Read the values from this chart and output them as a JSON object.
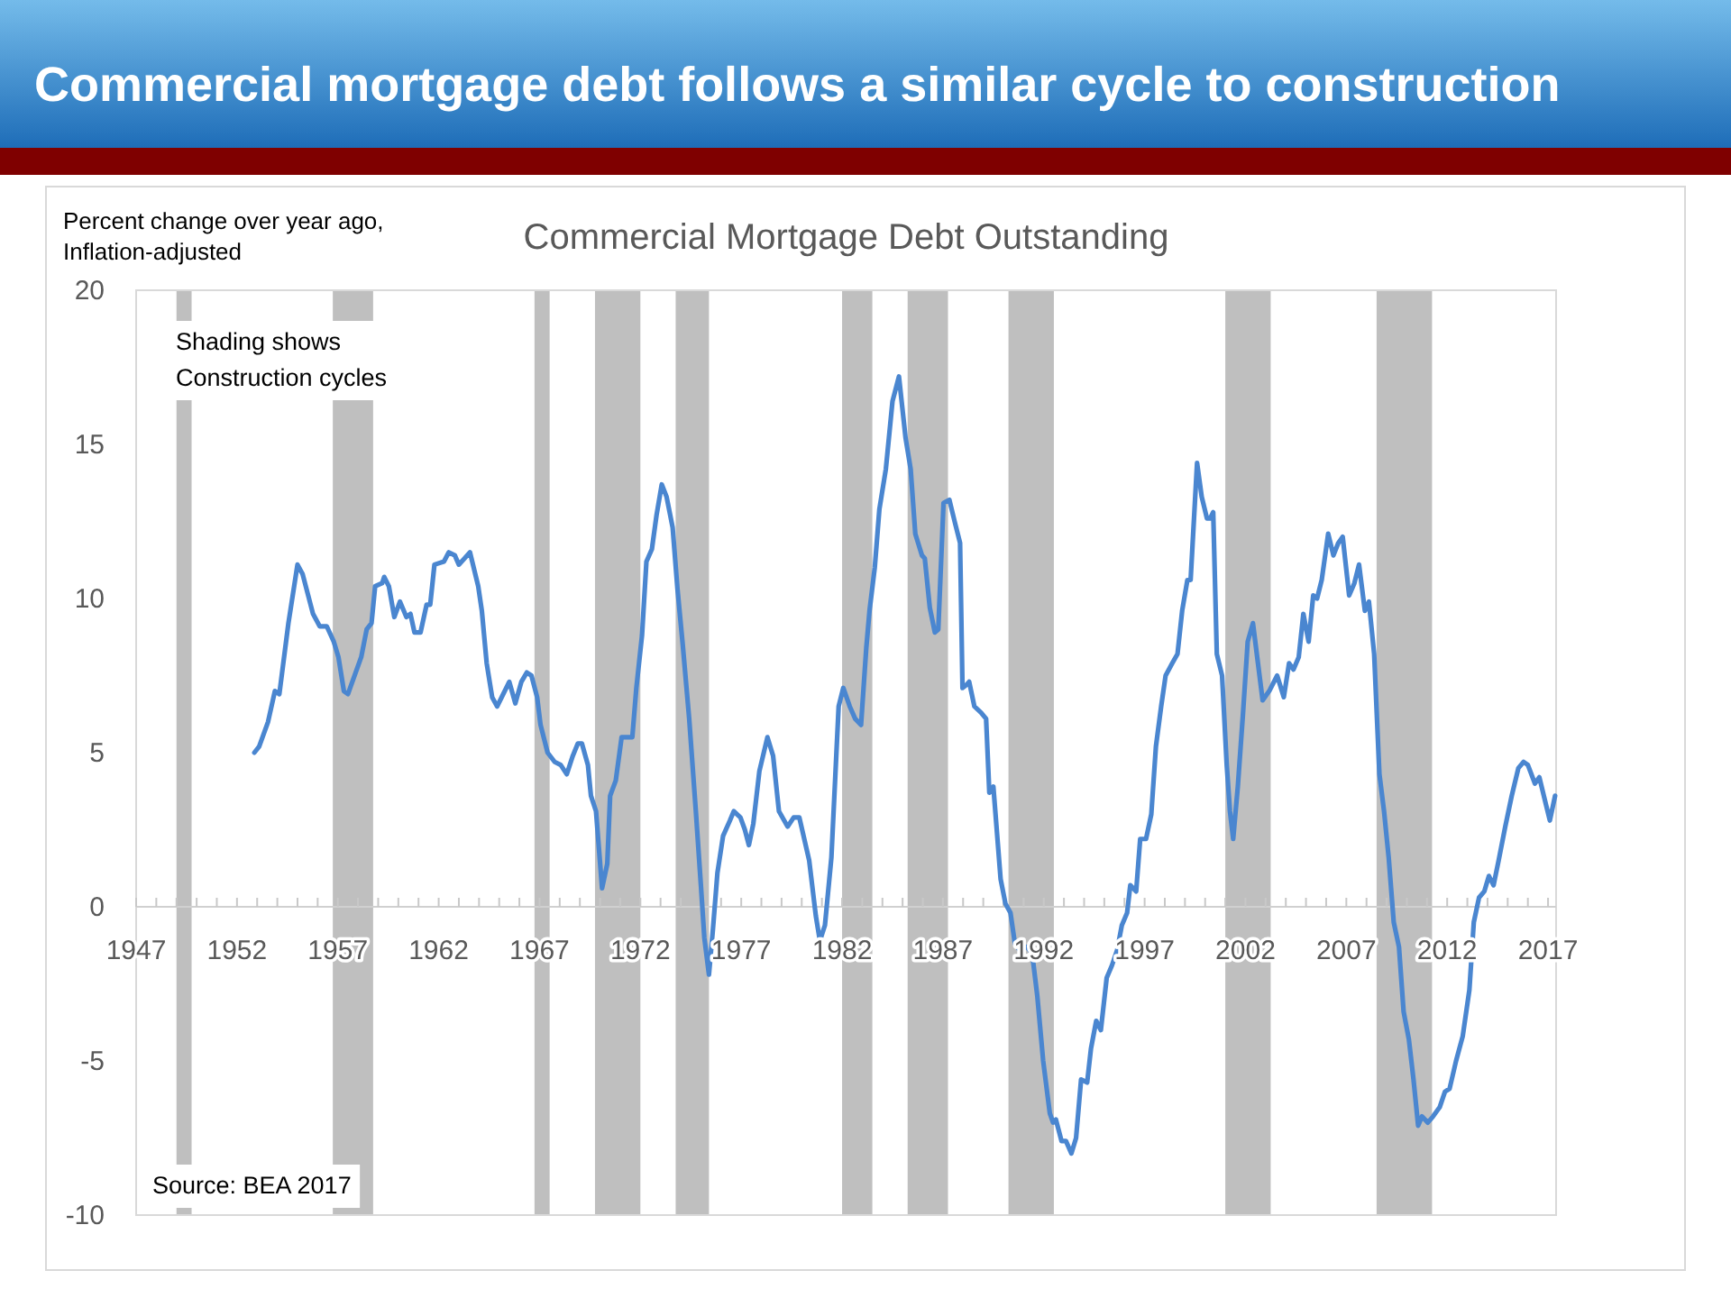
{
  "chart_data": {
    "type": "line",
    "title": "Commercial mortgage debt follows a similar cycle to construction",
    "subtitle": "Commercial Mortgage Debt Outstanding",
    "ylabel": "Percent change over year ago, Inflation-adjusted",
    "annotations": [
      "Shading shows Construction cycles",
      "Source: BEA 2017"
    ],
    "xlim": [
      1947,
      2017.4
    ],
    "ylim": [
      -10,
      20
    ],
    "yticks": [
      -10,
      -5,
      0,
      5,
      10,
      15,
      20
    ],
    "xticks": [
      1947,
      {
        "value": 1948,
        "label": null
      },
      {
        "value": 1949,
        "label": null
      },
      {
        "value": 1950,
        "label": null
      },
      {
        "value": 1951,
        "label": null
      },
      1952,
      {
        "value": 1953,
        "label": null
      },
      {
        "value": 1954,
        "label": null
      },
      {
        "value": 1955,
        "label": null
      },
      {
        "value": 1956,
        "label": null
      },
      1957,
      {
        "value": 1958,
        "label": null
      },
      {
        "value": 1959,
        "label": null
      },
      {
        "value": 1960,
        "label": null
      },
      {
        "value": 1961,
        "label": null
      },
      1962,
      {
        "value": 1963,
        "label": null
      },
      {
        "value": 1964,
        "label": null
      },
      {
        "value": 1965,
        "label": null
      },
      {
        "value": 1966,
        "label": null
      },
      1967,
      {
        "value": 1968,
        "label": null
      },
      {
        "value": 1969,
        "label": null
      },
      {
        "value": 1970,
        "label": null
      },
      {
        "value": 1971,
        "label": null
      },
      1972,
      {
        "value": 1973,
        "label": null
      },
      {
        "value": 1974,
        "label": null
      },
      {
        "value": 1975,
        "label": null
      },
      {
        "value": 1976,
        "label": null
      },
      1977,
      {
        "value": 1978,
        "label": null
      },
      {
        "value": 1979,
        "label": null
      },
      {
        "value": 1980,
        "label": null
      },
      {
        "value": 1981,
        "label": null
      },
      1982,
      {
        "value": 1983,
        "label": null
      },
      {
        "value": 1984,
        "label": null
      },
      {
        "value": 1985,
        "label": null
      },
      {
        "value": 1986,
        "label": null
      },
      1987,
      {
        "value": 1988,
        "label": null
      },
      {
        "value": 1989,
        "label": null
      },
      {
        "value": 1990,
        "label": null
      },
      {
        "value": 1991,
        "label": null
      },
      1992,
      {
        "value": 1993,
        "label": null
      },
      {
        "value": 1994,
        "label": null
      },
      {
        "value": 1995,
        "label": null
      },
      {
        "value": 1996,
        "label": null
      },
      1997,
      {
        "value": 1998,
        "label": null
      },
      {
        "value": 1999,
        "label": null
      },
      {
        "value": 2000,
        "label": null
      },
      {
        "value": 2001,
        "label": null
      },
      2002,
      {
        "value": 2003,
        "label": null
      },
      {
        "value": 2004,
        "label": null
      },
      {
        "value": 2005,
        "label": null
      },
      {
        "value": 2006,
        "label": null
      },
      2007,
      {
        "value": 2008,
        "label": null
      },
      {
        "value": 2009,
        "label": null
      },
      {
        "value": 2010,
        "label": null
      },
      {
        "value": 2011,
        "label": null
      },
      2012,
      {
        "value": 2013,
        "label": null
      },
      {
        "value": 2014,
        "label": null
      },
      {
        "value": 2015,
        "label": null
      },
      {
        "value": 2016,
        "label": null
      },
      2017
    ],
    "bands": [
      {
        "axis": "x",
        "from": 1949.0,
        "to": 1949.75,
        "color": "#bfbfbf"
      },
      {
        "axis": "x",
        "from": 1956.75,
        "to": 1958.75,
        "color": "#bfbfbf"
      },
      {
        "axis": "x",
        "from": 1966.75,
        "to": 1967.5,
        "color": "#bfbfbf"
      },
      {
        "axis": "x",
        "from": 1969.75,
        "to": 1972.0,
        "color": "#bfbfbf"
      },
      {
        "axis": "x",
        "from": 1973.75,
        "to": 1975.4,
        "color": "#bfbfbf"
      },
      {
        "axis": "x",
        "from": 1982.0,
        "to": 1983.5,
        "color": "#bfbfbf"
      },
      {
        "axis": "x",
        "from": 1985.25,
        "to": 1987.25,
        "color": "#bfbfbf"
      },
      {
        "axis": "x",
        "from": 1990.25,
        "to": 1992.5,
        "color": "#bfbfbf"
      },
      {
        "axis": "x",
        "from": 2001.0,
        "to": 2003.25,
        "color": "#bfbfbf"
      },
      {
        "axis": "x",
        "from": 2008.5,
        "to": 2011.25,
        "color": "#bfbfbf"
      }
    ],
    "x": [
      1952.86,
      1953.1,
      1953.54,
      1953.88,
      1954.1,
      1954.55,
      1955.0,
      1955.25,
      1955.77,
      1956.1,
      1956.45,
      1956.8,
      1957.03,
      1957.3,
      1957.5,
      1958.16,
      1958.43,
      1958.67,
      1958.85,
      1959.2,
      1959.3,
      1959.53,
      1959.8,
      1960.08,
      1960.4,
      1960.6,
      1960.8,
      1961.1,
      1961.4,
      1961.58,
      1961.79,
      1962.26,
      1962.5,
      1962.8,
      1963.0,
      1963.28,
      1963.55,
      1963.96,
      1964.14,
      1964.38,
      1964.65,
      1964.9,
      1965.2,
      1965.5,
      1965.8,
      1966.1,
      1966.37,
      1966.6,
      1966.88,
      1967.05,
      1967.4,
      1967.75,
      1968.05,
      1968.35,
      1968.65,
      1968.9,
      1969.1,
      1969.4,
      1969.55,
      1969.8,
      1970.1,
      1970.36,
      1970.5,
      1970.78,
      1971.07,
      1971.3,
      1971.6,
      1971.8,
      1972.08,
      1972.3,
      1972.57,
      1972.8,
      1973.06,
      1973.3,
      1973.6,
      1973.84,
      1974.1,
      1974.42,
      1974.75,
      1975.0,
      1975.17,
      1975.4,
      1975.6,
      1975.82,
      1976.1,
      1976.44,
      1976.63,
      1976.96,
      1977.18,
      1977.38,
      1977.6,
      1977.9,
      1978.3,
      1978.58,
      1978.87,
      1979.3,
      1979.6,
      1979.88,
      1980.37,
      1980.7,
      1980.9,
      1981.15,
      1981.47,
      1981.83,
      1982.06,
      1982.38,
      1982.65,
      1982.94,
      1983.2,
      1983.36,
      1983.62,
      1983.85,
      1984.17,
      1984.5,
      1984.82,
      1985.15,
      1985.4,
      1985.63,
      1985.96,
      1986.1,
      1986.35,
      1986.6,
      1986.77,
      1987.03,
      1987.32,
      1987.58,
      1987.85,
      1987.97,
      1988.17,
      1988.3,
      1988.56,
      1988.89,
      1989.14,
      1989.3,
      1989.5,
      1989.86,
      1990.1,
      1990.35,
      1990.57,
      1990.8,
      1991.16,
      1991.42,
      1991.68,
      1991.97,
      1992.3,
      1992.46,
      1992.6,
      1992.88,
      1993.1,
      1993.37,
      1993.6,
      1993.85,
      1994.15,
      1994.34,
      1994.6,
      1994.83,
      1995.12,
      1995.38,
      1995.64,
      1995.87,
      1996.13,
      1996.29,
      1996.58,
      1996.78,
      1997.07,
      1997.33,
      1997.56,
      1997.82,
      1998.04,
      1998.37,
      1998.63,
      1998.86,
      1999.12,
      1999.28,
      1999.6,
      1999.83,
      2000.09,
      2000.25,
      2000.4,
      2000.58,
      2000.84,
      2001.07,
      2001.23,
      2001.39,
      2001.62,
      2001.88,
      2002.11,
      2002.37,
      2002.6,
      2002.85,
      2003.18,
      2003.57,
      2003.9,
      2004.16,
      2004.38,
      2004.64,
      2004.87,
      2005.13,
      2005.36,
      2005.55,
      2005.78,
      2006.1,
      2006.36,
      2006.6,
      2006.82,
      2007.14,
      2007.4,
      2007.63,
      2007.92,
      2008.12,
      2008.38,
      2008.64,
      2008.87,
      2009.1,
      2009.35,
      2009.61,
      2009.84,
      2010.1,
      2010.33,
      2010.56,
      2010.75,
      2011.04,
      2011.3,
      2011.63,
      2011.89,
      2012.12,
      2012.44,
      2012.77,
      2013.1,
      2013.32,
      2013.58,
      2013.84,
      2014.07,
      2014.3,
      2014.55,
      2014.88,
      2015.2,
      2015.53,
      2015.79,
      2016.0,
      2016.35,
      2016.57,
      2016.83,
      2017.09,
      2017.35
    ],
    "series": [
      {
        "color": "#4a86d0",
        "values": [
          5.0,
          5.2,
          6.0,
          7.0,
          6.9,
          9.2,
          11.1,
          10.8,
          9.5,
          9.1,
          9.1,
          8.6,
          8.1,
          7.0,
          6.9,
          8.1,
          9.0,
          9.2,
          10.4,
          10.5,
          10.7,
          10.4,
          9.4,
          9.9,
          9.4,
          9.5,
          8.9,
          8.9,
          9.8,
          9.8,
          11.1,
          11.2,
          11.5,
          11.4,
          11.1,
          11.3,
          11.5,
          10.4,
          9.6,
          7.9,
          6.8,
          6.5,
          6.9,
          7.3,
          6.6,
          7.3,
          7.6,
          7.5,
          6.8,
          5.9,
          5.0,
          4.7,
          4.6,
          4.3,
          4.9,
          5.3,
          5.3,
          4.6,
          3.6,
          3.1,
          0.6,
          1.4,
          3.6,
          4.1,
          5.5,
          5.5,
          5.5,
          7.1,
          8.8,
          11.2,
          11.6,
          12.7,
          13.7,
          13.3,
          12.3,
          10.3,
          8.5,
          6.1,
          3.1,
          0.7,
          -1.0,
          -2.2,
          -0.7,
          1.1,
          2.3,
          2.8,
          3.1,
          2.9,
          2.5,
          2.0,
          2.7,
          4.4,
          5.5,
          4.9,
          3.1,
          2.6,
          2.9,
          2.9,
          1.5,
          -0.3,
          -1.1,
          -0.6,
          1.6,
          6.5,
          7.1,
          6.5,
          6.1,
          5.9,
          8.4,
          9.6,
          11.0,
          12.9,
          14.2,
          16.4,
          17.2,
          15.2,
          14.2,
          12.1,
          11.4,
          11.3,
          9.7,
          8.9,
          9.0,
          13.1,
          13.2,
          12.5,
          11.8,
          7.1,
          7.2,
          7.3,
          6.5,
          6.3,
          6.1,
          3.7,
          3.9,
          0.9,
          0.1,
          -0.2,
          -1.2,
          -1.4,
          -1.3,
          -1.5,
          -2.9,
          -5.0,
          -6.7,
          -7.0,
          -6.9,
          -7.6,
          -7.6,
          -8.0,
          -7.5,
          -5.6,
          -5.7,
          -4.6,
          -3.7,
          -4.0,
          -2.3,
          -1.9,
          -1.4,
          -0.6,
          -0.2,
          0.7,
          0.5,
          2.2,
          2.2,
          3.0,
          5.2,
          6.5,
          7.5,
          7.9,
          8.2,
          9.6,
          10.6,
          10.6,
          14.4,
          13.3,
          12.6,
          12.6,
          12.8,
          8.2,
          7.5,
          4.6,
          3.1,
          2.2,
          3.9,
          6.3,
          8.6,
          9.2,
          8.0,
          6.7,
          7.0,
          7.5,
          6.8,
          7.9,
          7.7,
          8.1,
          9.5,
          8.6,
          10.1,
          10.0,
          10.6,
          12.1,
          11.4,
          11.8,
          12.0,
          10.1,
          10.5,
          11.1,
          9.6,
          9.9,
          8.2,
          4.3,
          3.1,
          1.6,
          -0.5,
          -1.3,
          -3.4,
          -4.3,
          -5.6,
          -7.1,
          -6.8,
          -7.0,
          -6.8,
          -6.5,
          -6.0,
          -5.9,
          -5.0,
          -4.2,
          -2.7,
          -0.5,
          0.3,
          0.5,
          1.0,
          0.7,
          1.5,
          2.6,
          3.6,
          4.5,
          4.7,
          4.6,
          4.0,
          4.2,
          3.5,
          2.8,
          3.6
        ]
      }
    ]
  }
}
